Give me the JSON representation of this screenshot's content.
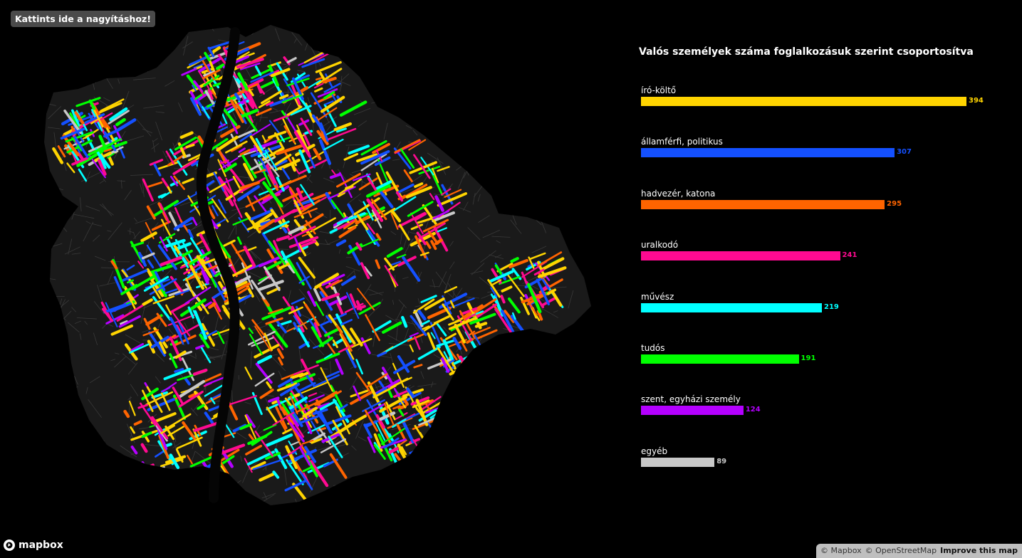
{
  "zoom_button": {
    "label": "Kattints ide a nagyításhoz!"
  },
  "chart_data": {
    "type": "bar",
    "orientation": "horizontal",
    "title": "Valós személyek száma foglalkozásuk szerint csoportosítva",
    "categories": [
      "író-költő",
      "államférfi, politikus",
      "hadvezér, katona",
      "uralkodó",
      "művész",
      "tudós",
      "szent, egyházi személy",
      "egyéb"
    ],
    "values": [
      394,
      307,
      295,
      241,
      219,
      191,
      124,
      89
    ],
    "colors": [
      "#ffd400",
      "#1450ff",
      "#ff6400",
      "#ff0a91",
      "#00ffff",
      "#00ff00",
      "#b400ff",
      "#c8c8c8"
    ],
    "xlim": [
      0,
      394
    ]
  },
  "map": {
    "background": "#000000",
    "city_fill": "#1a1a1a",
    "river_color": "#050505"
  },
  "mapbox_logo": {
    "text": "mapbox",
    "icon": "mapbox-logo-icon"
  },
  "attribution": {
    "mapbox": "© Mapbox",
    "osm": "© OpenStreetMap",
    "improve": "Improve this map"
  }
}
